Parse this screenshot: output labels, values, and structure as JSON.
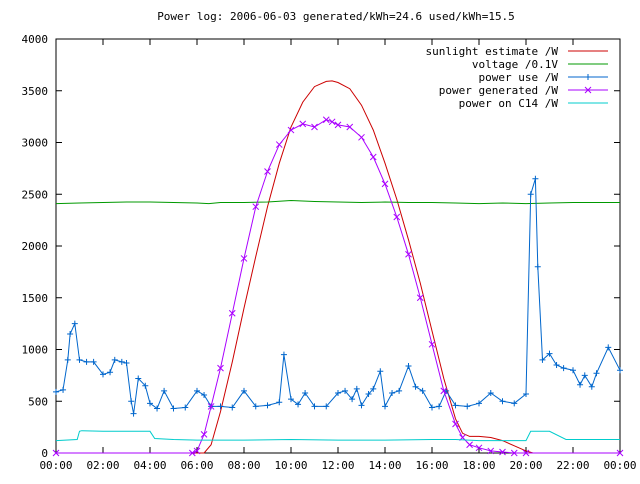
{
  "chart_data": {
    "type": "line",
    "title": "Power log: 2006-06-03 generated/kWh=24.6 used/kWh=15.5",
    "xlabel": "",
    "ylabel": "",
    "xlim": [
      0,
      24
    ],
    "ylim": [
      0,
      4000
    ],
    "grid": false,
    "legend_position": "top-right",
    "x_tick_labels": [
      "00:00",
      "02:00",
      "04:00",
      "06:00",
      "08:00",
      "10:00",
      "12:00",
      "14:00",
      "16:00",
      "18:00",
      "20:00",
      "22:00",
      "00:00"
    ],
    "x_ticks": [
      0,
      2,
      4,
      6,
      8,
      10,
      12,
      14,
      16,
      18,
      20,
      22,
      24
    ],
    "y_ticks": [
      0,
      500,
      1000,
      1500,
      2000,
      2500,
      3000,
      3500,
      4000
    ],
    "series": [
      {
        "name": "sunlight estimate /W",
        "color": "#cc0000",
        "style": "line",
        "x": [
          0,
          5.6,
          6.0,
          6.3,
          6.6,
          7,
          7.5,
          8,
          8.5,
          9,
          9.5,
          10,
          10.5,
          11,
          11.5,
          11.75,
          12,
          12.5,
          13,
          13.5,
          14,
          14.5,
          15,
          15.5,
          16,
          16.5,
          17,
          17.3,
          17.6,
          18,
          18.5,
          19,
          19.5,
          20,
          20.3,
          24
        ],
        "y": [
          0,
          0,
          0,
          0,
          80,
          400,
          880,
          1400,
          1900,
          2380,
          2800,
          3150,
          3390,
          3540,
          3590,
          3595,
          3580,
          3520,
          3360,
          3120,
          2800,
          2450,
          2060,
          1640,
          1180,
          720,
          330,
          190,
          160,
          160,
          150,
          120,
          70,
          20,
          0,
          0
        ]
      },
      {
        "name": "voltage /0.1V",
        "color": "#009900",
        "style": "line",
        "x": [
          0,
          1,
          2,
          3,
          4,
          5,
          6,
          6.5,
          7,
          8,
          9,
          10,
          11,
          12,
          13,
          14,
          15,
          16,
          17,
          18,
          19,
          20,
          21,
          22,
          23,
          24
        ],
        "y": [
          2410,
          2415,
          2420,
          2425,
          2425,
          2420,
          2415,
          2410,
          2420,
          2420,
          2425,
          2440,
          2430,
          2425,
          2420,
          2425,
          2420,
          2420,
          2415,
          2410,
          2415,
          2410,
          2415,
          2420,
          2420,
          2420
        ]
      },
      {
        "name": "power use /W",
        "color": "#0066cc",
        "style": "line+plus",
        "x": [
          0,
          0.3,
          0.5,
          0.6,
          0.8,
          1.0,
          1.3,
          1.6,
          2.0,
          2.3,
          2.5,
          2.8,
          3.0,
          3.2,
          3.3,
          3.5,
          3.8,
          4.0,
          4.3,
          4.6,
          5.0,
          5.5,
          6.0,
          6.3,
          6.6,
          7.0,
          7.5,
          8.0,
          8.5,
          9.0,
          9.5,
          9.7,
          10.0,
          10.3,
          10.6,
          11.0,
          11.5,
          12.0,
          12.3,
          12.6,
          12.8,
          13.0,
          13.3,
          13.5,
          13.8,
          14.0,
          14.3,
          14.6,
          15.0,
          15.3,
          15.6,
          16.0,
          16.3,
          16.6,
          17.0,
          17.5,
          18.0,
          18.5,
          19.0,
          19.5,
          20.0,
          20.2,
          20.4,
          20.5,
          20.7,
          21.0,
          21.3,
          21.6,
          22.0,
          22.3,
          22.5,
          22.8,
          23.0,
          23.5,
          24.0
        ],
        "y": [
          590,
          610,
          900,
          1150,
          1250,
          900,
          880,
          880,
          760,
          780,
          900,
          880,
          870,
          500,
          380,
          720,
          650,
          480,
          430,
          600,
          430,
          440,
          600,
          560,
          450,
          450,
          440,
          600,
          450,
          460,
          490,
          950,
          520,
          470,
          580,
          450,
          450,
          580,
          600,
          520,
          620,
          460,
          570,
          620,
          790,
          450,
          580,
          600,
          840,
          640,
          600,
          440,
          450,
          600,
          460,
          450,
          480,
          580,
          500,
          480,
          570,
          2500,
          2650,
          1800,
          900,
          960,
          850,
          820,
          800,
          660,
          750,
          640,
          770,
          1020,
          800
        ]
      },
      {
        "name": "power generated /W",
        "color": "#aa00ff",
        "style": "line+cross",
        "x": [
          0,
          5.8,
          6.0,
          6.3,
          6.6,
          7.0,
          7.5,
          8.0,
          8.5,
          9.0,
          9.5,
          10.0,
          10.5,
          11.0,
          11.5,
          11.75,
          12.0,
          12.5,
          13.0,
          13.5,
          14.0,
          14.5,
          15.0,
          15.5,
          16.0,
          16.5,
          17.0,
          17.3,
          17.6,
          18.0,
          18.5,
          19.0,
          19.5,
          20.0,
          24
        ],
        "y": [
          0,
          0,
          20,
          180,
          450,
          820,
          1350,
          1880,
          2380,
          2720,
          2980,
          3120,
          3180,
          3150,
          3220,
          3200,
          3170,
          3150,
          3050,
          2860,
          2600,
          2280,
          1920,
          1500,
          1050,
          600,
          280,
          150,
          80,
          50,
          20,
          10,
          0,
          0,
          0
        ]
      },
      {
        "name": "power on C14 /W",
        "color": "#00cccc",
        "style": "line",
        "x": [
          0,
          0.9,
          1.0,
          1.1,
          2.0,
          3.0,
          4.0,
          4.2,
          5.0,
          6.0,
          8.0,
          10.0,
          12.0,
          14.0,
          16.0,
          17.0,
          18.0,
          19.5,
          20.0,
          20.2,
          21.0,
          21.7,
          24.0
        ],
        "y": [
          120,
          130,
          210,
          215,
          210,
          210,
          210,
          140,
          130,
          125,
          125,
          130,
          125,
          125,
          130,
          130,
          120,
          120,
          120,
          210,
          210,
          130,
          130
        ]
      }
    ]
  }
}
